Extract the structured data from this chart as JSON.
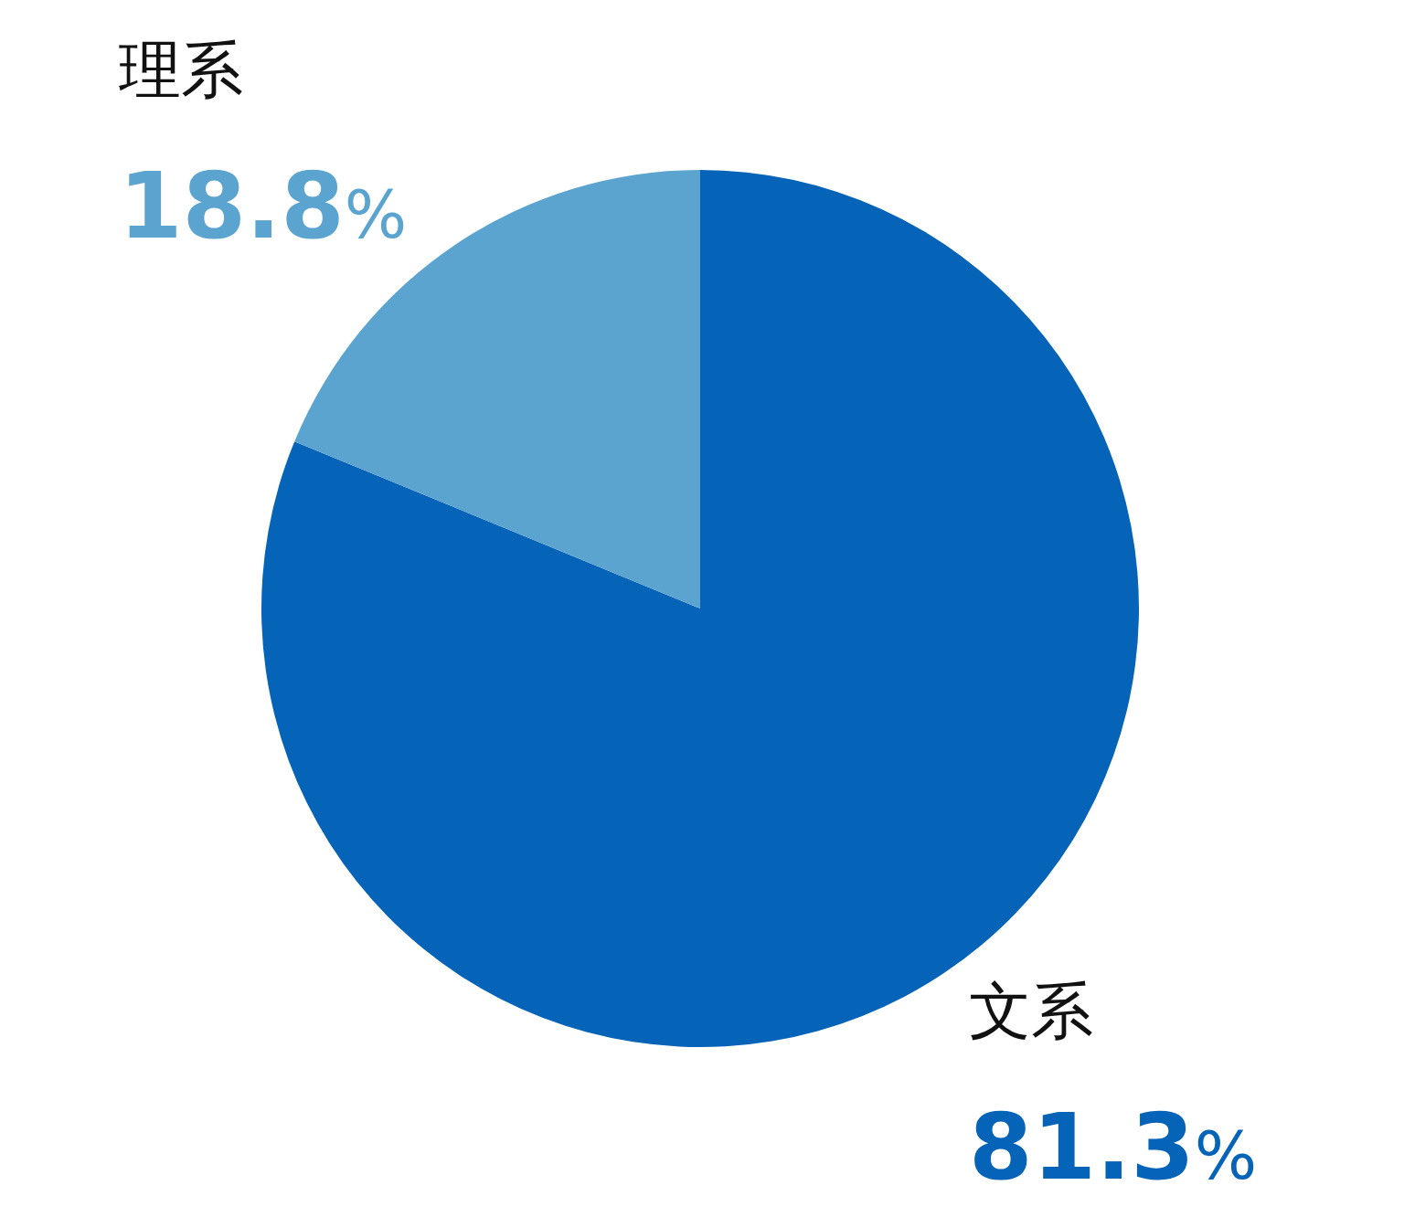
{
  "chart_data": {
    "type": "pie",
    "categories": [
      "文系",
      "理系"
    ],
    "values": [
      81.3,
      18.8
    ],
    "colors": [
      "#0563b8",
      "#5ba4d0"
    ],
    "value_labels": [
      "81.3%",
      "18.8%"
    ]
  }
}
